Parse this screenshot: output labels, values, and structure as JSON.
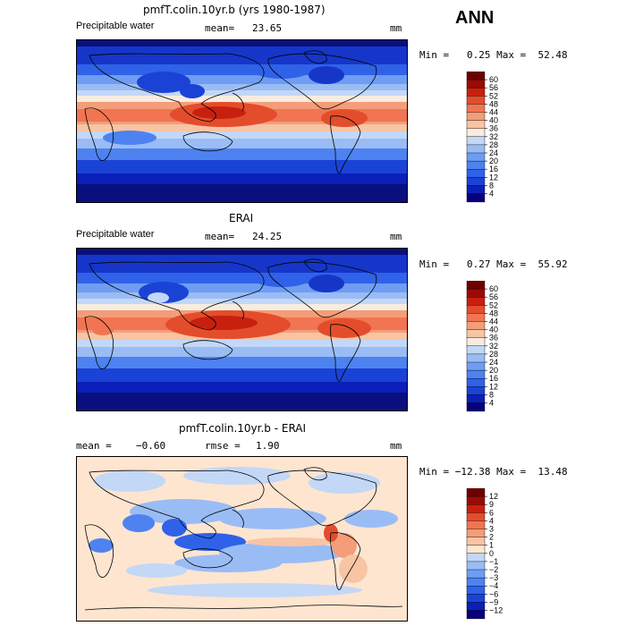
{
  "header": {
    "season": "ANN"
  },
  "colors": {
    "pw_scale": [
      "#08007a",
      "#0b1fb8",
      "#1a43d6",
      "#2f62e8",
      "#4d82f0",
      "#6f9df3",
      "#9abcf5",
      "#c3d7f7",
      "#f7ece0",
      "#f7c4a4",
      "#f49d78",
      "#f17552",
      "#e44d2b",
      "#c8200f",
      "#9c0a04",
      "#6e0000"
    ],
    "diff_scale": [
      "#08007a",
      "#0b1fb8",
      "#1a43d6",
      "#2f62e8",
      "#4d82f0",
      "#6f9df3",
      "#9abcf5",
      "#c3d7f7",
      "#fde5d0",
      "#f7c4a4",
      "#f49d78",
      "#f17552",
      "#e44d2b",
      "#c8200f",
      "#9c0a04",
      "#6e0000"
    ]
  },
  "chart_data": [
    {
      "type": "heatmap",
      "title": "pmfT.colin.10yr.b (yrs 1980-1987)",
      "variable": "Precipitable water",
      "units": "mm",
      "mean_label": "mean=",
      "mean": "23.65",
      "min_max_label": "Min =   0.25 Max =  52.48",
      "min": 0.25,
      "max": 52.48,
      "colorbar_levels": [
        "60",
        "56",
        "52",
        "48",
        "44",
        "40",
        "36",
        "32",
        "28",
        "24",
        "20",
        "16",
        "12",
        "8",
        "4"
      ],
      "grid": false
    },
    {
      "type": "heatmap",
      "title": "ERAI",
      "variable": "Precipitable water",
      "units": "mm",
      "mean_label": "mean=",
      "mean": "24.25",
      "min_max_label": "Min =   0.27 Max =  55.92",
      "min": 0.27,
      "max": 55.92,
      "colorbar_levels": [
        "60",
        "56",
        "52",
        "48",
        "44",
        "40",
        "36",
        "32",
        "28",
        "24",
        "20",
        "16",
        "12",
        "8",
        "4"
      ],
      "grid": false
    },
    {
      "type": "heatmap",
      "title": "pmfT.colin.10yr.b - ERAI",
      "units": "mm",
      "mean_label": "mean =",
      "mean": "−0.60",
      "rmse_label": "rmse =",
      "rmse": "1.90",
      "min_max_label": "Min = −12.38 Max =  13.48",
      "min": -12.38,
      "max": 13.48,
      "colorbar_levels": [
        "12",
        "9",
        "6",
        "4",
        "3",
        "2",
        "1",
        "0",
        "−1",
        "−2",
        "−3",
        "−4",
        "−6",
        "−9",
        "−12"
      ],
      "grid": false
    }
  ]
}
